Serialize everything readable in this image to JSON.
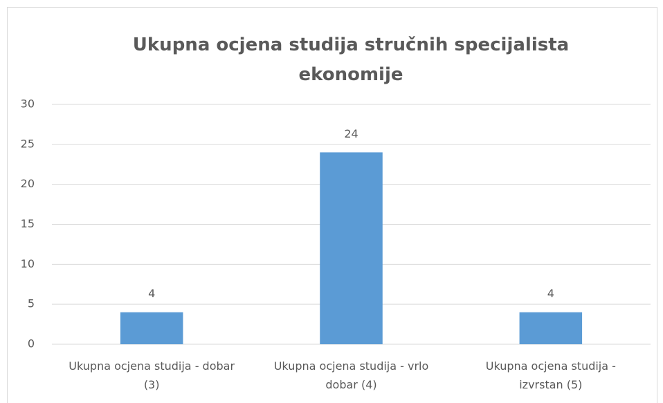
{
  "chart_data": {
    "type": "bar",
    "title": "Ukupna ocjena studija stručnih specijalista ekonomije",
    "categories": [
      "Ukupna ocjena studija - dobar (3)",
      "Ukupna ocjena studija - vrlo dobar (4)",
      "Ukupna ocjena studija - izvrstan (5)"
    ],
    "values": [
      4,
      24,
      4
    ],
    "color": "#5b9bd5",
    "ylim": [
      0,
      30
    ],
    "yticks": [
      0,
      5,
      10,
      15,
      20,
      25,
      30
    ],
    "grid": true,
    "data_labels": true
  }
}
